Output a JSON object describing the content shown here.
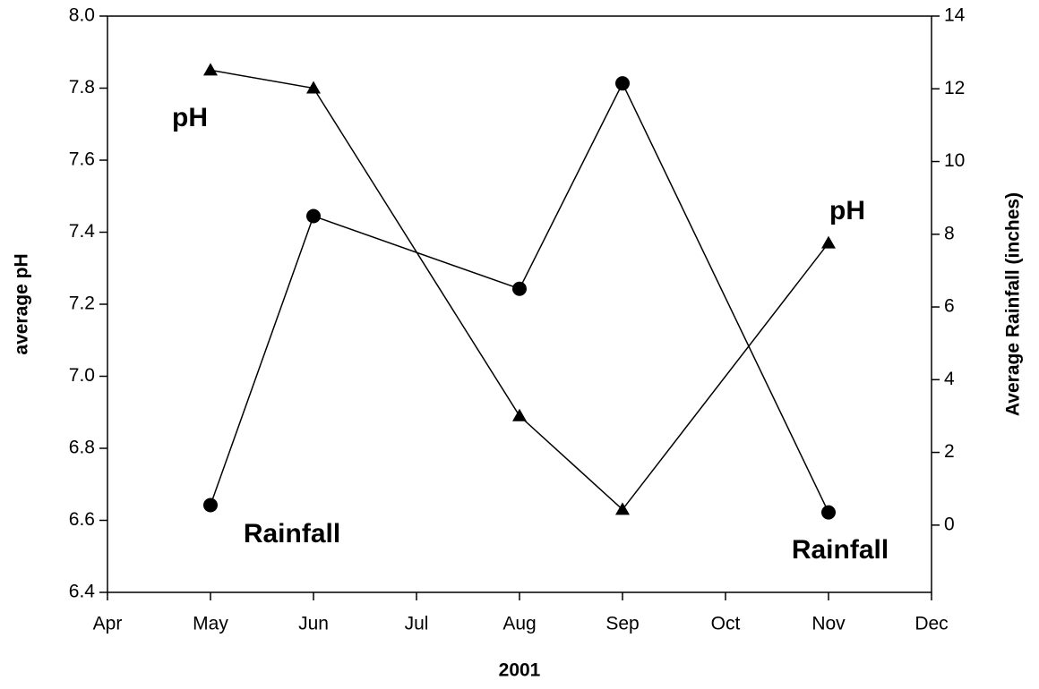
{
  "chart_data": {
    "type": "line",
    "xlabel": "2001",
    "ylabel": "average pH",
    "y2label": "Average Rainfall (inches)",
    "categories": [
      "Apr",
      "May",
      "Jun",
      "Jul",
      "Aug",
      "Sep",
      "Oct",
      "Nov",
      "Dec"
    ],
    "ylim": [
      6.4,
      8.0
    ],
    "yticks": [
      6.4,
      6.6,
      6.8,
      {
        "value": 7.0,
        "label": "7.0"
      },
      7.2,
      7.4,
      7.6,
      7.8,
      {
        "value": 8.0,
        "label": "8.0"
      }
    ],
    "y2lim": [
      -1.85,
      14
    ],
    "y2ticks": [
      0,
      2,
      4,
      6,
      8,
      10,
      12,
      14
    ],
    "series": [
      {
        "name": "pH",
        "color": "#000000",
        "marker": "triangle",
        "axis": "y",
        "x": [
          "May",
          "Jun",
          "Aug",
          "Sep",
          "Nov"
        ],
        "values": [
          7.85,
          7.8,
          6.89,
          6.63,
          7.37
        ]
      },
      {
        "name": "Rainfall",
        "color": "#000000",
        "marker": "circle",
        "axis": "y2",
        "x": [
          "May",
          "Jun",
          "Aug",
          "Sep",
          "Nov"
        ],
        "values": [
          0.55,
          8.5,
          6.5,
          12.15,
          0.35
        ]
      }
    ],
    "annotations": [
      "pH",
      "pH",
      "Rainfall",
      "Rainfall"
    ]
  }
}
